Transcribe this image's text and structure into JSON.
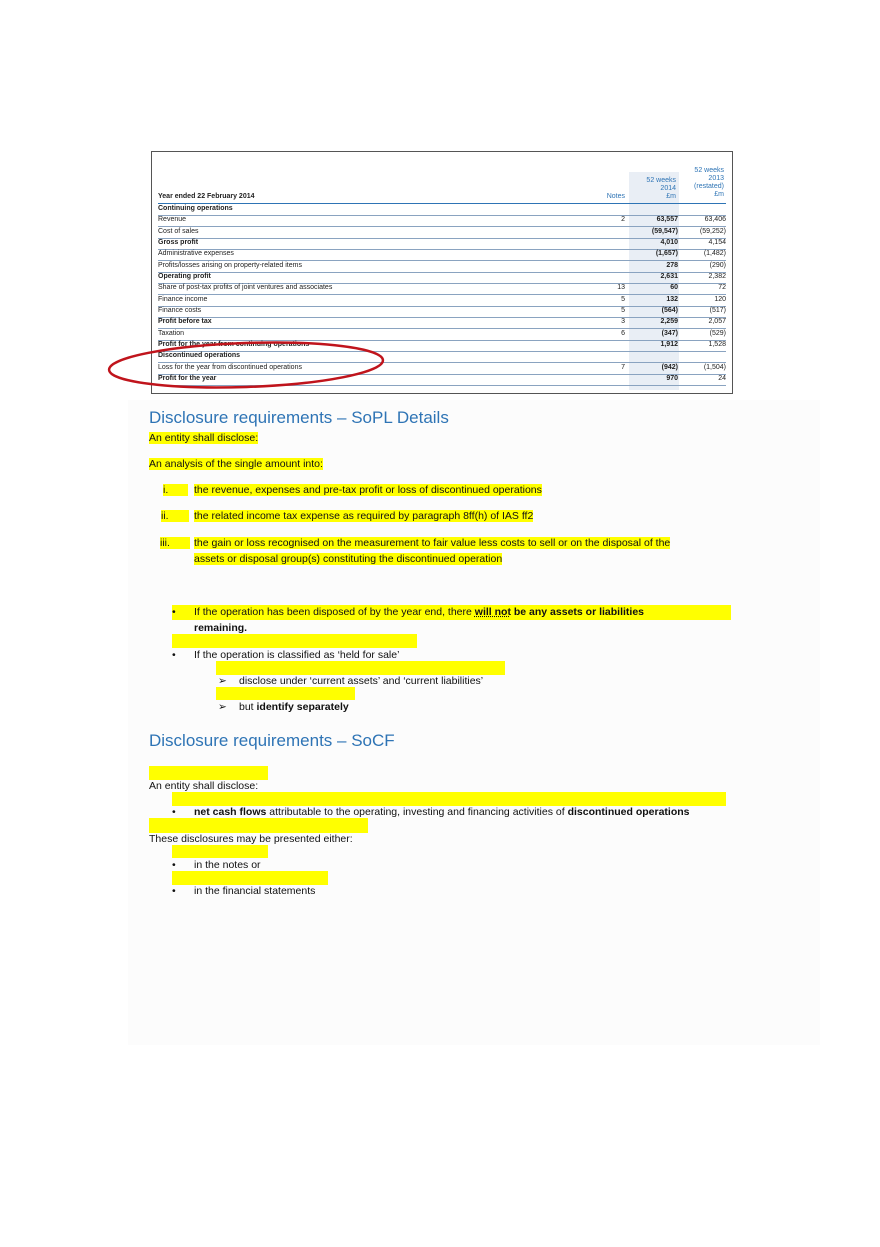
{
  "table": {
    "year_label": "Year ended 22 February 2014",
    "notes_header": "Notes",
    "col_2014": [
      "52 weeks",
      "2014",
      "£m"
    ],
    "col_2013": [
      "52 weeks",
      "2013",
      "(restated)",
      "£m"
    ],
    "rows": [
      {
        "label": "Continuing operations",
        "note": "",
        "v2014": "",
        "v2013": "",
        "bold": true
      },
      {
        "label": "Revenue",
        "note": "2",
        "v2014": "63,557",
        "v2013": "63,406"
      },
      {
        "label": "Cost of sales",
        "note": "",
        "v2014": "(59,547)",
        "v2013": "(59,252)"
      },
      {
        "label": "Gross profit",
        "note": "",
        "v2014": "4,010",
        "v2013": "4,154",
        "bold": true
      },
      {
        "label": "Administrative expenses",
        "note": "",
        "v2014": "(1,657)",
        "v2013": "(1,482)"
      },
      {
        "label": "Profits/losses arising on property-related items",
        "note": "",
        "v2014": "278",
        "v2013": "(290)"
      },
      {
        "label": "Operating profit",
        "note": "",
        "v2014": "2,631",
        "v2013": "2,382",
        "bold": true
      },
      {
        "label": "Share of post-tax profits of joint ventures and associates",
        "note": "13",
        "v2014": "60",
        "v2013": "72"
      },
      {
        "label": "Finance income",
        "note": "5",
        "v2014": "132",
        "v2013": "120"
      },
      {
        "label": "Finance costs",
        "note": "5",
        "v2014": "(564)",
        "v2013": "(517)"
      },
      {
        "label": "Profit before tax",
        "note": "3",
        "v2014": "2,259",
        "v2013": "2,057",
        "bold": true
      },
      {
        "label": "Taxation",
        "note": "6",
        "v2014": "(347)",
        "v2013": "(529)"
      },
      {
        "label": "Profit for the year from continuing operations",
        "note": "",
        "v2014": "1,912",
        "v2013": "1,528",
        "bold": true
      },
      {
        "label": "Discontinued operations",
        "note": "",
        "v2014": "",
        "v2013": "",
        "bold": true
      },
      {
        "label": "Loss for the year from discontinued operations",
        "note": "7",
        "v2014": "(942)",
        "v2013": "(1,504)"
      },
      {
        "label": "Profit for the year",
        "note": "",
        "v2014": "970",
        "v2013": "24",
        "bold": true
      }
    ],
    "annotation_color": "#c0141c"
  },
  "sopl": {
    "heading": "Disclosure requirements – SoPL Details",
    "intro": "An entity shall disclose:",
    "analysis": "An analysis of the single amount into:",
    "items": [
      {
        "num": "i.",
        "text": "the revenue, expenses and pre-tax profit or loss of discontinued operations"
      },
      {
        "num": "ii.",
        "text": "the related income tax expense as required by paragraph 8ff(h) of IAS ff2"
      },
      {
        "num": "iii.",
        "text": "the gain or loss recognised on the measurement to fair value less costs to sell or on the disposal of the",
        "text2": "assets or disposal group(s) constituting the discontinued operation"
      }
    ],
    "bullet1_a": "If the operation has been disposed of by the year end, there ",
    "bullet1_b": "will not",
    "bullet1_c": " be any assets or liabilities",
    "bullet1_d": "remaining.",
    "bullet2": "If the operation is classified as ‘held for sale’",
    "sub1": "disclose under ‘current assets’ and ‘current liabilities’",
    "sub2_a": "but ",
    "sub2_b": "identify separately"
  },
  "socf": {
    "heading": "Disclosure requirements – SoCF",
    "intro": "An entity shall disclose:",
    "bullet_a": "net cash flows",
    "bullet_b": " attributable to the operating, investing and financing activities of ",
    "bullet_c": "discontinued operations",
    "either": "These disclosures may be presented either:",
    "opt1": "in the notes or",
    "opt2": "in the financial statements"
  },
  "highlight_color": "#ffff00",
  "heading_color": "#2e74b5"
}
